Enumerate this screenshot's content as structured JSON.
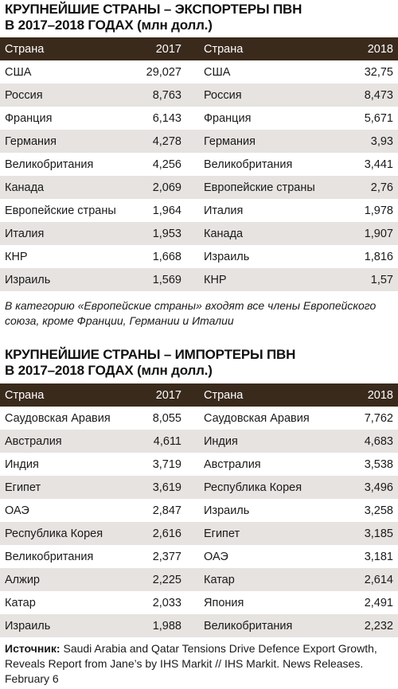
{
  "exporters": {
    "title_line1": "КРУПНЕЙШИЕ СТРАНЫ – ЭКСПОРТЕРЫ ПВН",
    "title_line2": "В 2017–2018 ГОДАХ",
    "title_unit": "(млн долл.)",
    "headers": {
      "country_left": "Страна",
      "year_left": "2017",
      "country_right": "Страна",
      "year_right": "2018"
    },
    "rows": [
      {
        "c2017": "США",
        "v2017": "29,027",
        "c2018": "США",
        "v2018": "32,75"
      },
      {
        "c2017": "Россия",
        "v2017": "8,763",
        "c2018": "Россия",
        "v2018": "8,473"
      },
      {
        "c2017": "Франция",
        "v2017": "6,143",
        "c2018": "Франция",
        "v2018": "5,671"
      },
      {
        "c2017": "Германия",
        "v2017": "4,278",
        "c2018": "Германия",
        "v2018": "3,93"
      },
      {
        "c2017": "Великобритания",
        "v2017": "4,256",
        "c2018": "Великобритания",
        "v2018": "3,441"
      },
      {
        "c2017": "Канада",
        "v2017": "2,069",
        "c2018": "Европейские страны",
        "v2018": "2,76"
      },
      {
        "c2017": "Европейские страны",
        "v2017": "1,964",
        "c2018": "Италия",
        "v2018": "1,978"
      },
      {
        "c2017": "Италия",
        "v2017": "1,953",
        "c2018": "Канада",
        "v2018": "1,907"
      },
      {
        "c2017": "КНР",
        "v2017": "1,668",
        "c2018": "Израиль",
        "v2018": "1,816"
      },
      {
        "c2017": "Израиль",
        "v2017": "1,569",
        "c2018": "КНР",
        "v2018": "1,57"
      }
    ],
    "note": "В категорию «Европейские страны» входят все члены Европейского союза, кроме Франции, Германии и Италии"
  },
  "importers": {
    "title_line1": "КРУПНЕЙШИЕ СТРАНЫ – ИМПОРТЕРЫ ПВН",
    "title_line2": "В 2017–2018 ГОДАХ",
    "title_unit": "(млн долл.)",
    "headers": {
      "country_left": "Страна",
      "year_left": "2017",
      "country_right": "Страна",
      "year_right": "2018"
    },
    "rows": [
      {
        "c2017": "Саудовская Аравия",
        "v2017": "8,055",
        "c2018": "Саудовская Аравия",
        "v2018": "7,762"
      },
      {
        "c2017": "Австралия",
        "v2017": "4,611",
        "c2018": "Индия",
        "v2018": "4,683"
      },
      {
        "c2017": "Индия",
        "v2017": "3,719",
        "c2018": "Австралия",
        "v2018": "3,538"
      },
      {
        "c2017": "Египет",
        "v2017": "3,619",
        "c2018": "Республика Корея",
        "v2018": "3,496"
      },
      {
        "c2017": "ОАЭ",
        "v2017": "2,847",
        "c2018": "Израиль",
        "v2018": "3,258"
      },
      {
        "c2017": "Республика Корея",
        "v2017": "2,616",
        "c2018": "Египет",
        "v2018": "3,185"
      },
      {
        "c2017": "Великобритания",
        "v2017": "2,377",
        "c2018": "ОАЭ",
        "v2018": "3,181"
      },
      {
        "c2017": "Алжир",
        "v2017": "2,225",
        "c2018": "Катар",
        "v2018": "2,614"
      },
      {
        "c2017": "Катар",
        "v2017": "2,033",
        "c2018": "Япония",
        "v2018": "2,491"
      },
      {
        "c2017": "Израиль",
        "v2017": "1,988",
        "c2018": "Великобритания",
        "v2018": "2,232"
      }
    ]
  },
  "source": {
    "label": "Источник:",
    "text": "Saudi Arabia and Qatar Tensions Drive Defence Export Growth, Reveals Report from Jane’s by IHS Markit // IHS Markit. News Releases. February 6"
  }
}
